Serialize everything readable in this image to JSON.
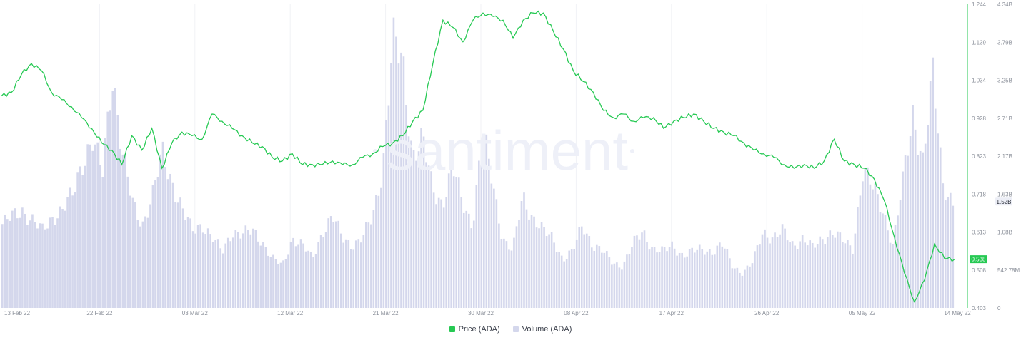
{
  "watermark": "santiment",
  "legend": [
    {
      "label": "Price (ADA)",
      "color": "#26c953"
    },
    {
      "label": "Volume (ADA)",
      "color": "#d4d7ec"
    }
  ],
  "chart_data": {
    "type": "line",
    "grid": "vertical",
    "x_ticks": [
      "13 Feb 22",
      "22 Feb 22",
      "03 Mar 22",
      "12 Mar 22",
      "21 Mar 22",
      "30 Mar 22",
      "08 Apr 22",
      "17 Apr 22",
      "26 Apr 22",
      "05 May 22",
      "14 May 22"
    ],
    "price_axis_ticks": [
      "1.244",
      "1.139",
      "1.034",
      "0.928",
      "0.823",
      "0.718",
      "0.613",
      "0.508",
      "0.403"
    ],
    "volume_axis_ticks": [
      "4.34B",
      "3.79B",
      "3.25B",
      "2.71B",
      "2.17B",
      "1.63B",
      "1.08B",
      "542.78M",
      "0"
    ],
    "price_ylim": [
      0.403,
      1.244
    ],
    "volume_ylim": [
      0,
      4.34
    ],
    "current_price_label": "0.538",
    "current_volume_label": "1.52B",
    "series": [
      {
        "name": "Price (ADA)",
        "axis": "left-right-inner",
        "color": "#26c953",
        "values": [
          0.99,
          1.0,
          1.05,
          1.08,
          1.06,
          1.0,
          0.98,
          0.96,
          0.93,
          0.9,
          0.86,
          0.84,
          0.8,
          0.88,
          0.84,
          0.9,
          0.79,
          0.86,
          0.89,
          0.88,
          0.87,
          0.94,
          0.92,
          0.9,
          0.88,
          0.86,
          0.85,
          0.82,
          0.81,
          0.83,
          0.8,
          0.8,
          0.8,
          0.81,
          0.8,
          0.8,
          0.82,
          0.83,
          0.85,
          0.86,
          0.88,
          0.92,
          0.95,
          1.08,
          1.2,
          1.18,
          1.14,
          1.2,
          1.22,
          1.21,
          1.2,
          1.15,
          1.2,
          1.22,
          1.22,
          1.17,
          1.12,
          1.06,
          1.03,
          1.0,
          0.95,
          0.93,
          0.94,
          0.92,
          0.93,
          0.93,
          0.9,
          0.92,
          0.93,
          0.94,
          0.92,
          0.9,
          0.89,
          0.88,
          0.86,
          0.84,
          0.83,
          0.82,
          0.8,
          0.79,
          0.8,
          0.79,
          0.81,
          0.87,
          0.81,
          0.8,
          0.79,
          0.76,
          0.7,
          0.6,
          0.5,
          0.42,
          0.48,
          0.58,
          0.54,
          0.538
        ]
      },
      {
        "name": "Volume (ADA)",
        "unit": "B",
        "color": "#d4d7ec",
        "values": [
          1.2,
          1.3,
          1.4,
          1.25,
          1.1,
          1.3,
          1.4,
          1.6,
          2.1,
          2.4,
          1.9,
          3.4,
          2.2,
          1.5,
          1.2,
          1.6,
          2.2,
          1.8,
          1.4,
          1.1,
          1.2,
          1.0,
          0.8,
          1.1,
          1.05,
          1.1,
          0.95,
          0.7,
          0.6,
          1.0,
          0.9,
          0.7,
          1.1,
          1.3,
          1.0,
          0.9,
          1.0,
          1.3,
          2.0,
          3.8,
          3.5,
          2.2,
          2.4,
          1.7,
          1.5,
          2.0,
          1.5,
          1.2,
          2.5,
          1.8,
          1.0,
          0.8,
          1.6,
          1.3,
          1.1,
          1.0,
          0.7,
          0.8,
          1.2,
          0.9,
          0.8,
          0.65,
          0.6,
          0.9,
          1.1,
          0.85,
          0.8,
          0.9,
          0.75,
          0.8,
          0.85,
          0.8,
          0.9,
          0.6,
          0.5,
          0.65,
          1.1,
          1.0,
          1.1,
          0.9,
          1.0,
          0.85,
          1.0,
          1.1,
          0.95,
          0.85,
          2.0,
          1.7,
          1.4,
          0.9,
          1.8,
          2.8,
          2.1,
          3.3,
          1.8,
          1.5
        ]
      }
    ]
  }
}
